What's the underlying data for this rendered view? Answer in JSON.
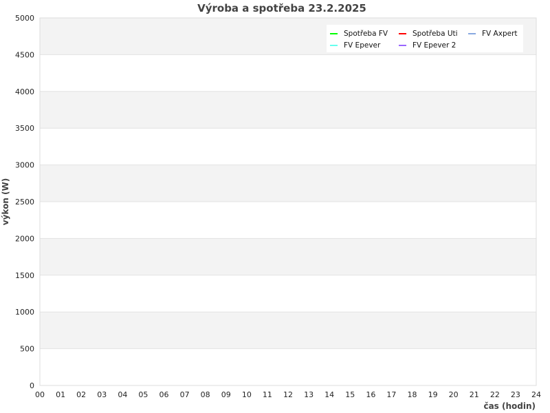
{
  "chart_data": {
    "type": "line",
    "title": "Výroba a spotřeba 23.2.2025",
    "xlabel": "čas (hodin)",
    "ylabel": "výkon (W)",
    "xlim": [
      0,
      24
    ],
    "ylim": [
      0,
      5000
    ],
    "x_ticks": [
      "00",
      "01",
      "02",
      "03",
      "04",
      "05",
      "06",
      "07",
      "08",
      "09",
      "10",
      "11",
      "12",
      "13",
      "14",
      "15",
      "16",
      "17",
      "18",
      "19",
      "20",
      "21",
      "22",
      "23",
      "24"
    ],
    "y_ticks": [
      0,
      500,
      1000,
      1500,
      2000,
      2500,
      3000,
      3500,
      4000,
      4500,
      5000
    ],
    "grid": true,
    "legend_position": "top-right",
    "series": [
      {
        "name": "Spotřeba FV",
        "color": "#00ff00",
        "values": []
      },
      {
        "name": "Spotřeba Uti",
        "color": "#ff0000",
        "values": []
      },
      {
        "name": "FV Axpert",
        "color": "#88a8e0",
        "values": []
      },
      {
        "name": "FV Epever",
        "color": "#66ffee",
        "values": []
      },
      {
        "name": "FV Epever 2",
        "color": "#9966ff",
        "values": []
      }
    ]
  }
}
